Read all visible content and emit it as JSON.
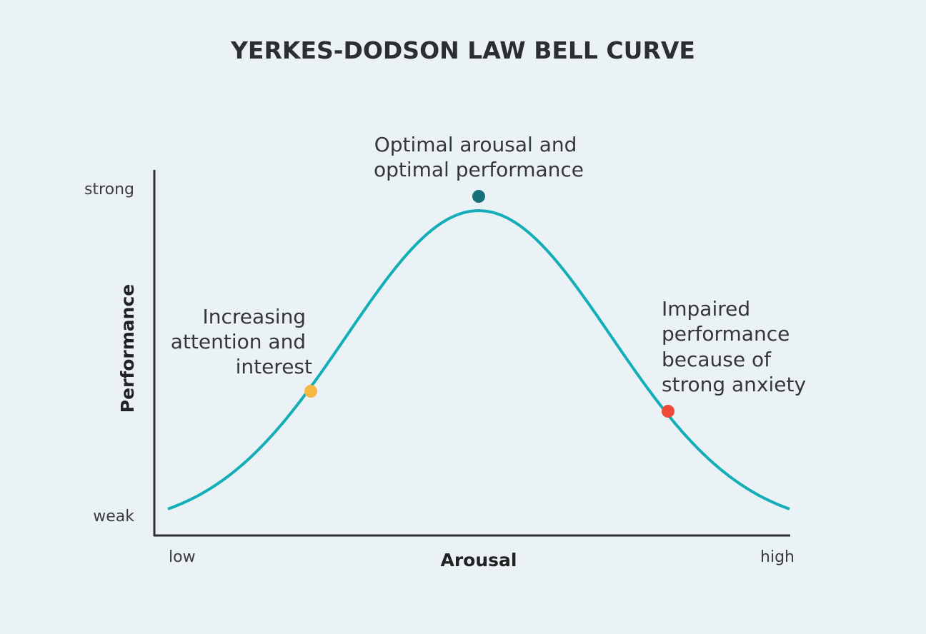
{
  "title": "YERKES-DODSON LAW BELL CURVE",
  "y_axis": {
    "label": "Performance",
    "high": "strong",
    "low": "weak"
  },
  "x_axis": {
    "label": "Arousal",
    "low": "low",
    "high": "high"
  },
  "annotations": [
    {
      "lines": [
        "Increasing",
        "attention and",
        "interest"
      ]
    },
    {
      "lines": [
        "Optimal arousal and",
        "optimal performance"
      ]
    },
    {
      "lines": [
        "Impaired",
        "performance",
        "because of",
        "strong anxiety"
      ]
    }
  ]
}
